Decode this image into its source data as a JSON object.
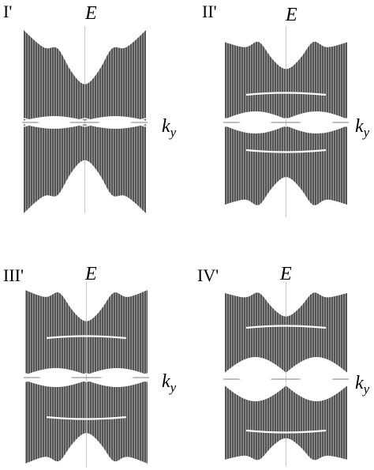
{
  "panels": [
    {
      "label": "I'",
      "energy_label": "E",
      "momentum_label": {
        "base": "k",
        "subscript": "y"
      }
    },
    {
      "label": "II'",
      "energy_label": "E",
      "momentum_label": {
        "base": "k",
        "subscript": "y"
      }
    },
    {
      "label": "III'",
      "energy_label": "E",
      "momentum_label": {
        "base": "k",
        "subscript": "y"
      }
    },
    {
      "label": "IV'",
      "energy_label": "E",
      "momentum_label": {
        "base": "k",
        "subscript": "y"
      }
    }
  ]
}
